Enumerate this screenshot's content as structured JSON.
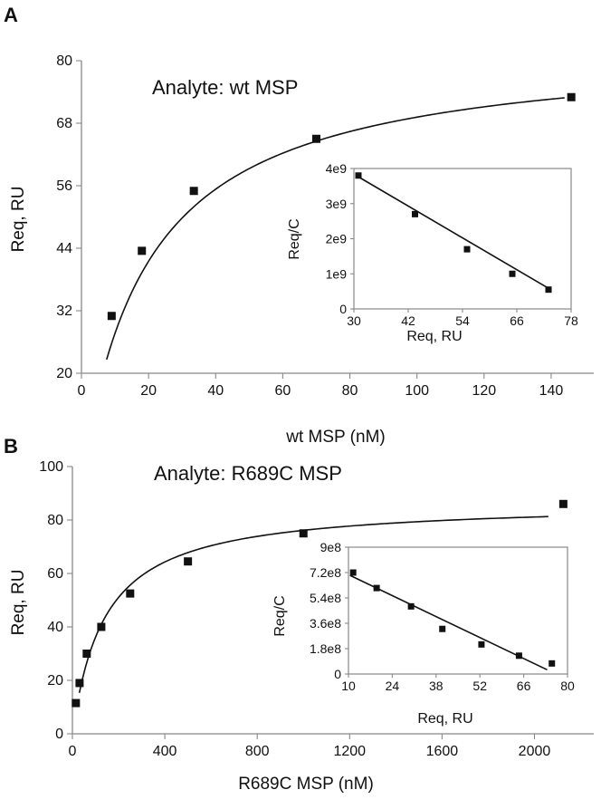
{
  "chart_data": [
    {
      "panel": "A",
      "type": "scatter",
      "annotation": "Analyte: wt MSP",
      "xlabel": "wt MSP (nM)",
      "ylabel": "Req, RU",
      "xlim": [
        0,
        150
      ],
      "ylim": [
        20,
        80
      ],
      "xticks": [
        0,
        20,
        40,
        60,
        80,
        100,
        120,
        140
      ],
      "yticks": [
        20,
        32,
        44,
        56,
        68,
        80
      ],
      "points": [
        {
          "x": 9,
          "y": 31
        },
        {
          "x": 18,
          "y": 43.5
        },
        {
          "x": 33.5,
          "y": 55
        },
        {
          "x": 70,
          "y": 65
        },
        {
          "x": 146,
          "y": 73
        }
      ],
      "fit": {
        "model": "langmuir",
        "rmax": 83,
        "kd": 20,
        "x_from": 7.5,
        "x_to": 144
      },
      "inset": {
        "type": "scatter",
        "xlabel": "Req, RU",
        "ylabel": "Req/C",
        "xlim": [
          30,
          78
        ],
        "ylim": [
          0,
          4
        ],
        "xticks": [
          30,
          42,
          54,
          66,
          78
        ],
        "yticks": [
          0,
          1,
          2,
          3,
          4
        ],
        "ytick_labels": [
          "0",
          "1e9",
          "2e9",
          "3e9",
          "4e9"
        ],
        "points": [
          {
            "x": 31,
            "y": 3.8
          },
          {
            "x": 43.5,
            "y": 2.7
          },
          {
            "x": 55,
            "y": 1.7
          },
          {
            "x": 65,
            "y": 1.0
          },
          {
            "x": 73,
            "y": 0.55
          }
        ],
        "line": {
          "x1": 30.5,
          "y1": 3.8,
          "x2": 73.5,
          "y2": 0.55
        }
      }
    },
    {
      "panel": "B",
      "type": "scatter",
      "annotation": "Analyte: R689C MSP",
      "xlabel": "R689C MSP (nM)",
      "ylabel": "Req, RU",
      "xlim": [
        0,
        2100
      ],
      "ylim": [
        0,
        100
      ],
      "xticks": [
        0,
        400,
        800,
        1200,
        1600,
        2000
      ],
      "yticks": [
        0,
        20,
        40,
        60,
        80,
        100
      ],
      "points": [
        {
          "x": 15,
          "y": 11.5
        },
        {
          "x": 31,
          "y": 19
        },
        {
          "x": 62,
          "y": 30
        },
        {
          "x": 125,
          "y": 40
        },
        {
          "x": 250,
          "y": 52.5
        },
        {
          "x": 500,
          "y": 64.5
        },
        {
          "x": 1000,
          "y": 75
        },
        {
          "x": 2125,
          "y": 86
        }
      ],
      "fit": {
        "model": "langmuir",
        "rmax": 86.8,
        "kd": 140,
        "x_from": 30,
        "x_to": 2060
      },
      "inset": {
        "type": "scatter",
        "xlabel": "Req, RU",
        "ylabel": "Req/C",
        "xlim": [
          10,
          80
        ],
        "ylim": [
          0,
          9
        ],
        "xticks": [
          10,
          24,
          38,
          52,
          66,
          80
        ],
        "yticks": [
          0,
          1.8,
          3.6,
          5.4,
          7.2,
          9
        ],
        "ytick_labels": [
          "0",
          "1.8e8",
          "3.6e8",
          "5.4e8",
          "7.2e8",
          "9e8"
        ],
        "points": [
          {
            "x": 11.5,
            "y": 7.2
          },
          {
            "x": 19,
            "y": 6.1
          },
          {
            "x": 30,
            "y": 4.8
          },
          {
            "x": 40,
            "y": 3.2
          },
          {
            "x": 52.5,
            "y": 2.1
          },
          {
            "x": 64.5,
            "y": 1.3
          },
          {
            "x": 75,
            "y": 0.75
          }
        ],
        "line": {
          "x1": 10.5,
          "y1": 7.0,
          "x2": 73.5,
          "y2": 0.3
        }
      }
    }
  ]
}
